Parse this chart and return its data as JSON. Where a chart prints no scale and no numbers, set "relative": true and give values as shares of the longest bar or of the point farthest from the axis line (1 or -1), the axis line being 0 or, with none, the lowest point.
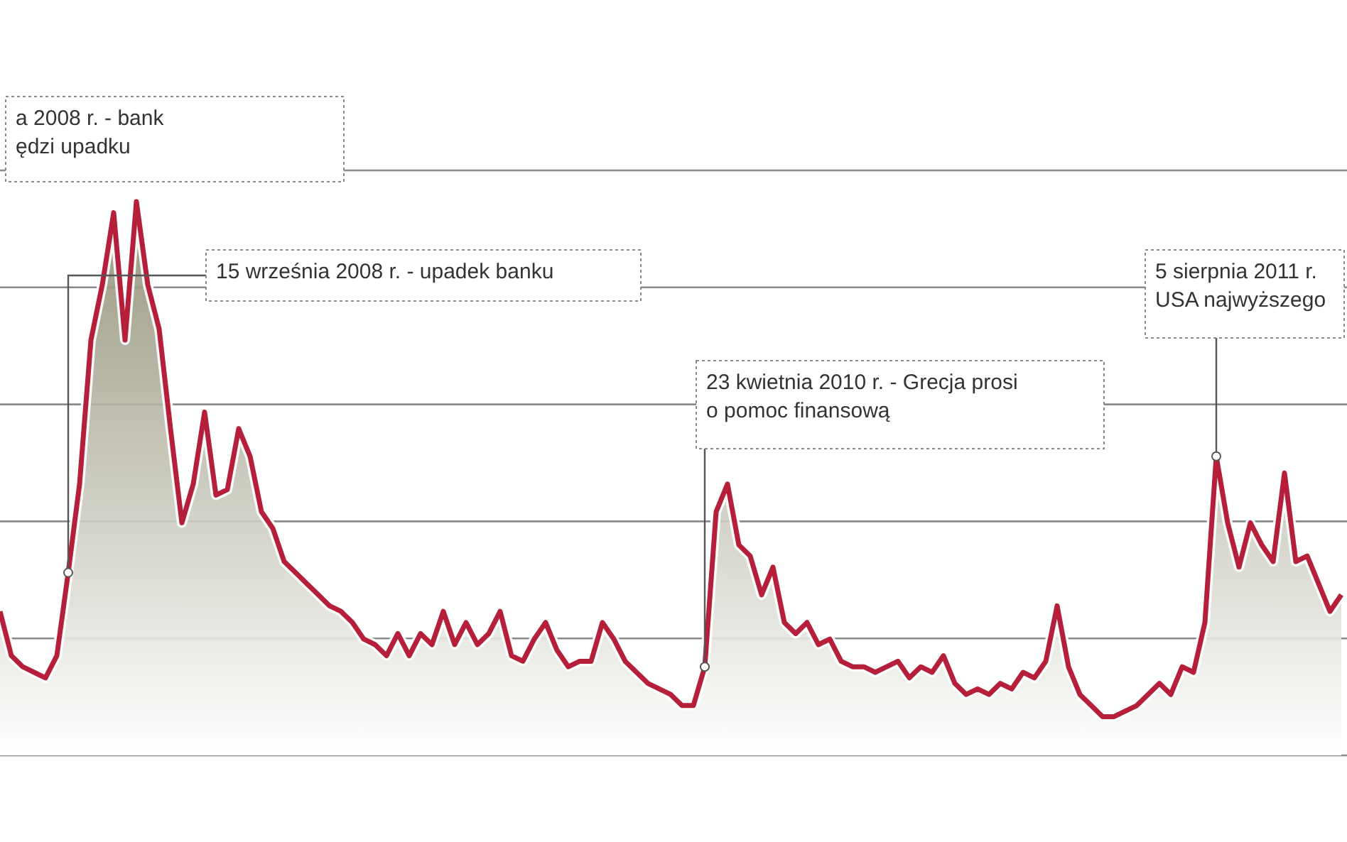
{
  "chart_data": {
    "type": "area",
    "relative": true,
    "grid": true,
    "categories": [
      null,
      null,
      null,
      null,
      null,
      null,
      null,
      null,
      null,
      null,
      null,
      null,
      null,
      null,
      null,
      null,
      null,
      null,
      null,
      null,
      null,
      null,
      null,
      null,
      null,
      null,
      null,
      null,
      null,
      null,
      null,
      null,
      null,
      null,
      null,
      null,
      null,
      null,
      null,
      null,
      null,
      null,
      null,
      null,
      null,
      null,
      null,
      null,
      null,
      null,
      null,
      null,
      null,
      null,
      null,
      null,
      null,
      null,
      null,
      null,
      null,
      null,
      null,
      null,
      null,
      null,
      null,
      null,
      null,
      null,
      null,
      null,
      null,
      null,
      null,
      null,
      null,
      null,
      null,
      null,
      null,
      null,
      null,
      null,
      null,
      null,
      null,
      null,
      null,
      null,
      null,
      null,
      null,
      null,
      null,
      null,
      null,
      null,
      null,
      null,
      null,
      null,
      null,
      null,
      null,
      null,
      null,
      null,
      null,
      null,
      null,
      null,
      null,
      null,
      null,
      null,
      null,
      null,
      null
    ],
    "series": [
      {
        "color": "#b51f3a",
        "values": [
          0.26,
          0.18,
          0.16,
          0.15,
          0.14,
          0.18,
          0.33,
          0.49,
          0.75,
          0.85,
          0.98,
          0.75,
          1.0,
          0.85,
          0.77,
          0.59,
          0.42,
          0.49,
          0.62,
          0.47,
          0.48,
          0.59,
          0.54,
          0.44,
          0.41,
          0.35,
          0.33,
          0.31,
          0.29,
          0.27,
          0.26,
          0.24,
          0.21,
          0.2,
          0.18,
          0.22,
          0.18,
          0.22,
          0.2,
          0.26,
          0.2,
          0.24,
          0.2,
          0.22,
          0.26,
          0.18,
          0.17,
          0.21,
          0.24,
          0.19,
          0.16,
          0.17,
          0.17,
          0.24,
          0.21,
          0.17,
          0.15,
          0.13,
          0.12,
          0.11,
          0.09,
          0.09,
          0.16,
          0.44,
          0.49,
          0.38,
          0.36,
          0.29,
          0.34,
          0.24,
          0.22,
          0.24,
          0.2,
          0.21,
          0.17,
          0.16,
          0.16,
          0.15,
          0.16,
          0.17,
          0.14,
          0.16,
          0.15,
          0.18,
          0.13,
          0.11,
          0.12,
          0.11,
          0.13,
          0.12,
          0.15,
          0.14,
          0.17,
          0.27,
          0.16,
          0.11,
          0.09,
          0.07,
          0.07,
          0.08,
          0.09,
          0.11,
          0.13,
          0.11,
          0.16,
          0.15,
          0.24,
          0.54,
          0.42,
          0.34,
          0.42,
          0.38,
          0.35,
          0.51,
          0.35,
          0.36,
          0.31,
          0.26,
          0.29
        ]
      }
    ],
    "annotations": [
      "a 2008 r. - bank\nędzi upadku",
      "15 września 2008 r. - upadek banku",
      "23 kwietnia 2010 r. - Grecja prosi\no pomoc finansową",
      "5 sierpnia 2011 r.\nUSA najwyższego"
    ]
  }
}
